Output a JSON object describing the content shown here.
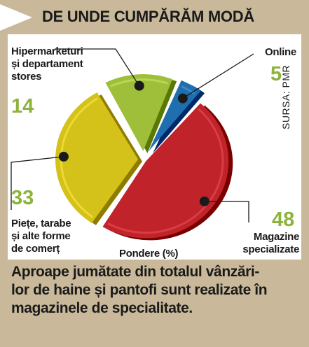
{
  "title": "DE UNDE CUMPĂRĂM MODĂ",
  "source": "SURSA: PMR",
  "unit_label": "Pondere (%)",
  "caption": "Aproape jumătate din totalul vânzări-\nlor de haine și pantofi sunt realizate în\nmagazinele de specialitate.",
  "colors": {
    "background": "#c9b99a",
    "panel": "#ffffff",
    "number_accent": "#8cb33a"
  },
  "chart_data": {
    "type": "pie",
    "unit": "%",
    "slices": [
      {
        "label": "Online",
        "value": 5,
        "color": "#1f6fb0"
      },
      {
        "label": "Magazine\nspecializate",
        "value": 48,
        "color": "#c0242a"
      },
      {
        "label": "Piețe, tarabe\nși alte forme\nde comerț",
        "value": 33,
        "color": "#d4c21a"
      },
      {
        "label": "Hipermarketuri\nși departament\nstores",
        "value": 14,
        "color": "#9fbf3a"
      }
    ]
  }
}
